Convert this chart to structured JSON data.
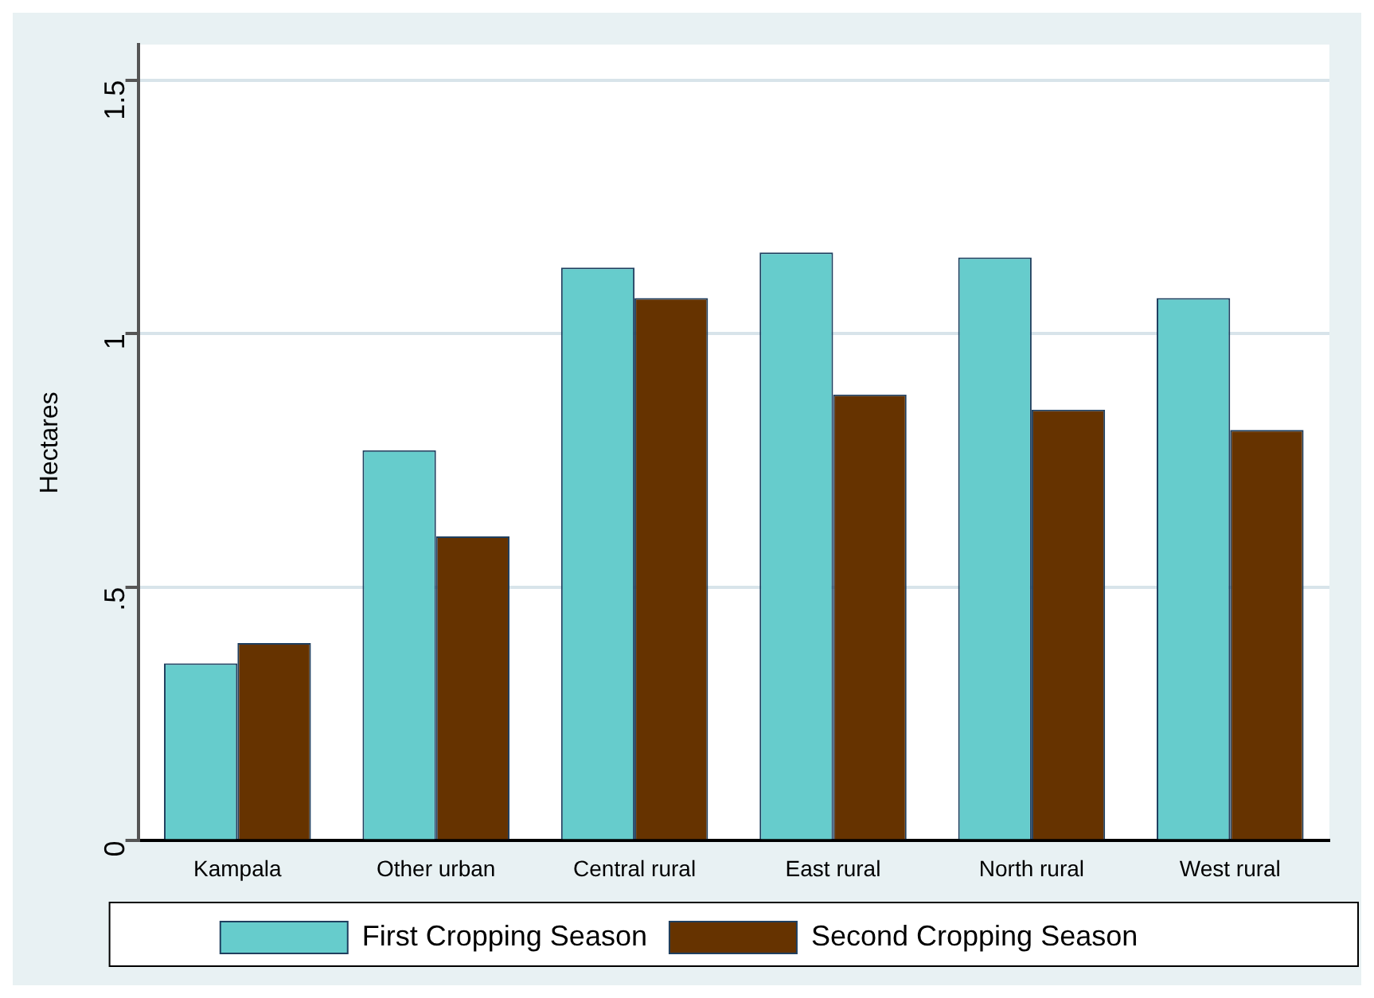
{
  "chart_data": {
    "type": "bar",
    "ylabel": "Hectares",
    "categories": [
      "Kampala",
      "Other urban",
      "Central rural",
      "East rural",
      "North rural",
      "West rural"
    ],
    "series": [
      {
        "name": "First Cropping Season",
        "color": "#66cccc",
        "values": [
          0.35,
          0.77,
          1.13,
          1.16,
          1.15,
          1.07
        ]
      },
      {
        "name": "Second Cropping Season",
        "color": "#663300",
        "values": [
          0.39,
          0.6,
          1.07,
          0.88,
          0.85,
          0.81
        ]
      }
    ],
    "ylim": [
      0,
      1.57
    ],
    "yticks": [
      0,
      {
        "value": 0.5,
        "label": ".5"
      },
      1,
      {
        "value": 1.5,
        "label": "1.5"
      }
    ],
    "grid": "y",
    "legend": "bottom"
  }
}
